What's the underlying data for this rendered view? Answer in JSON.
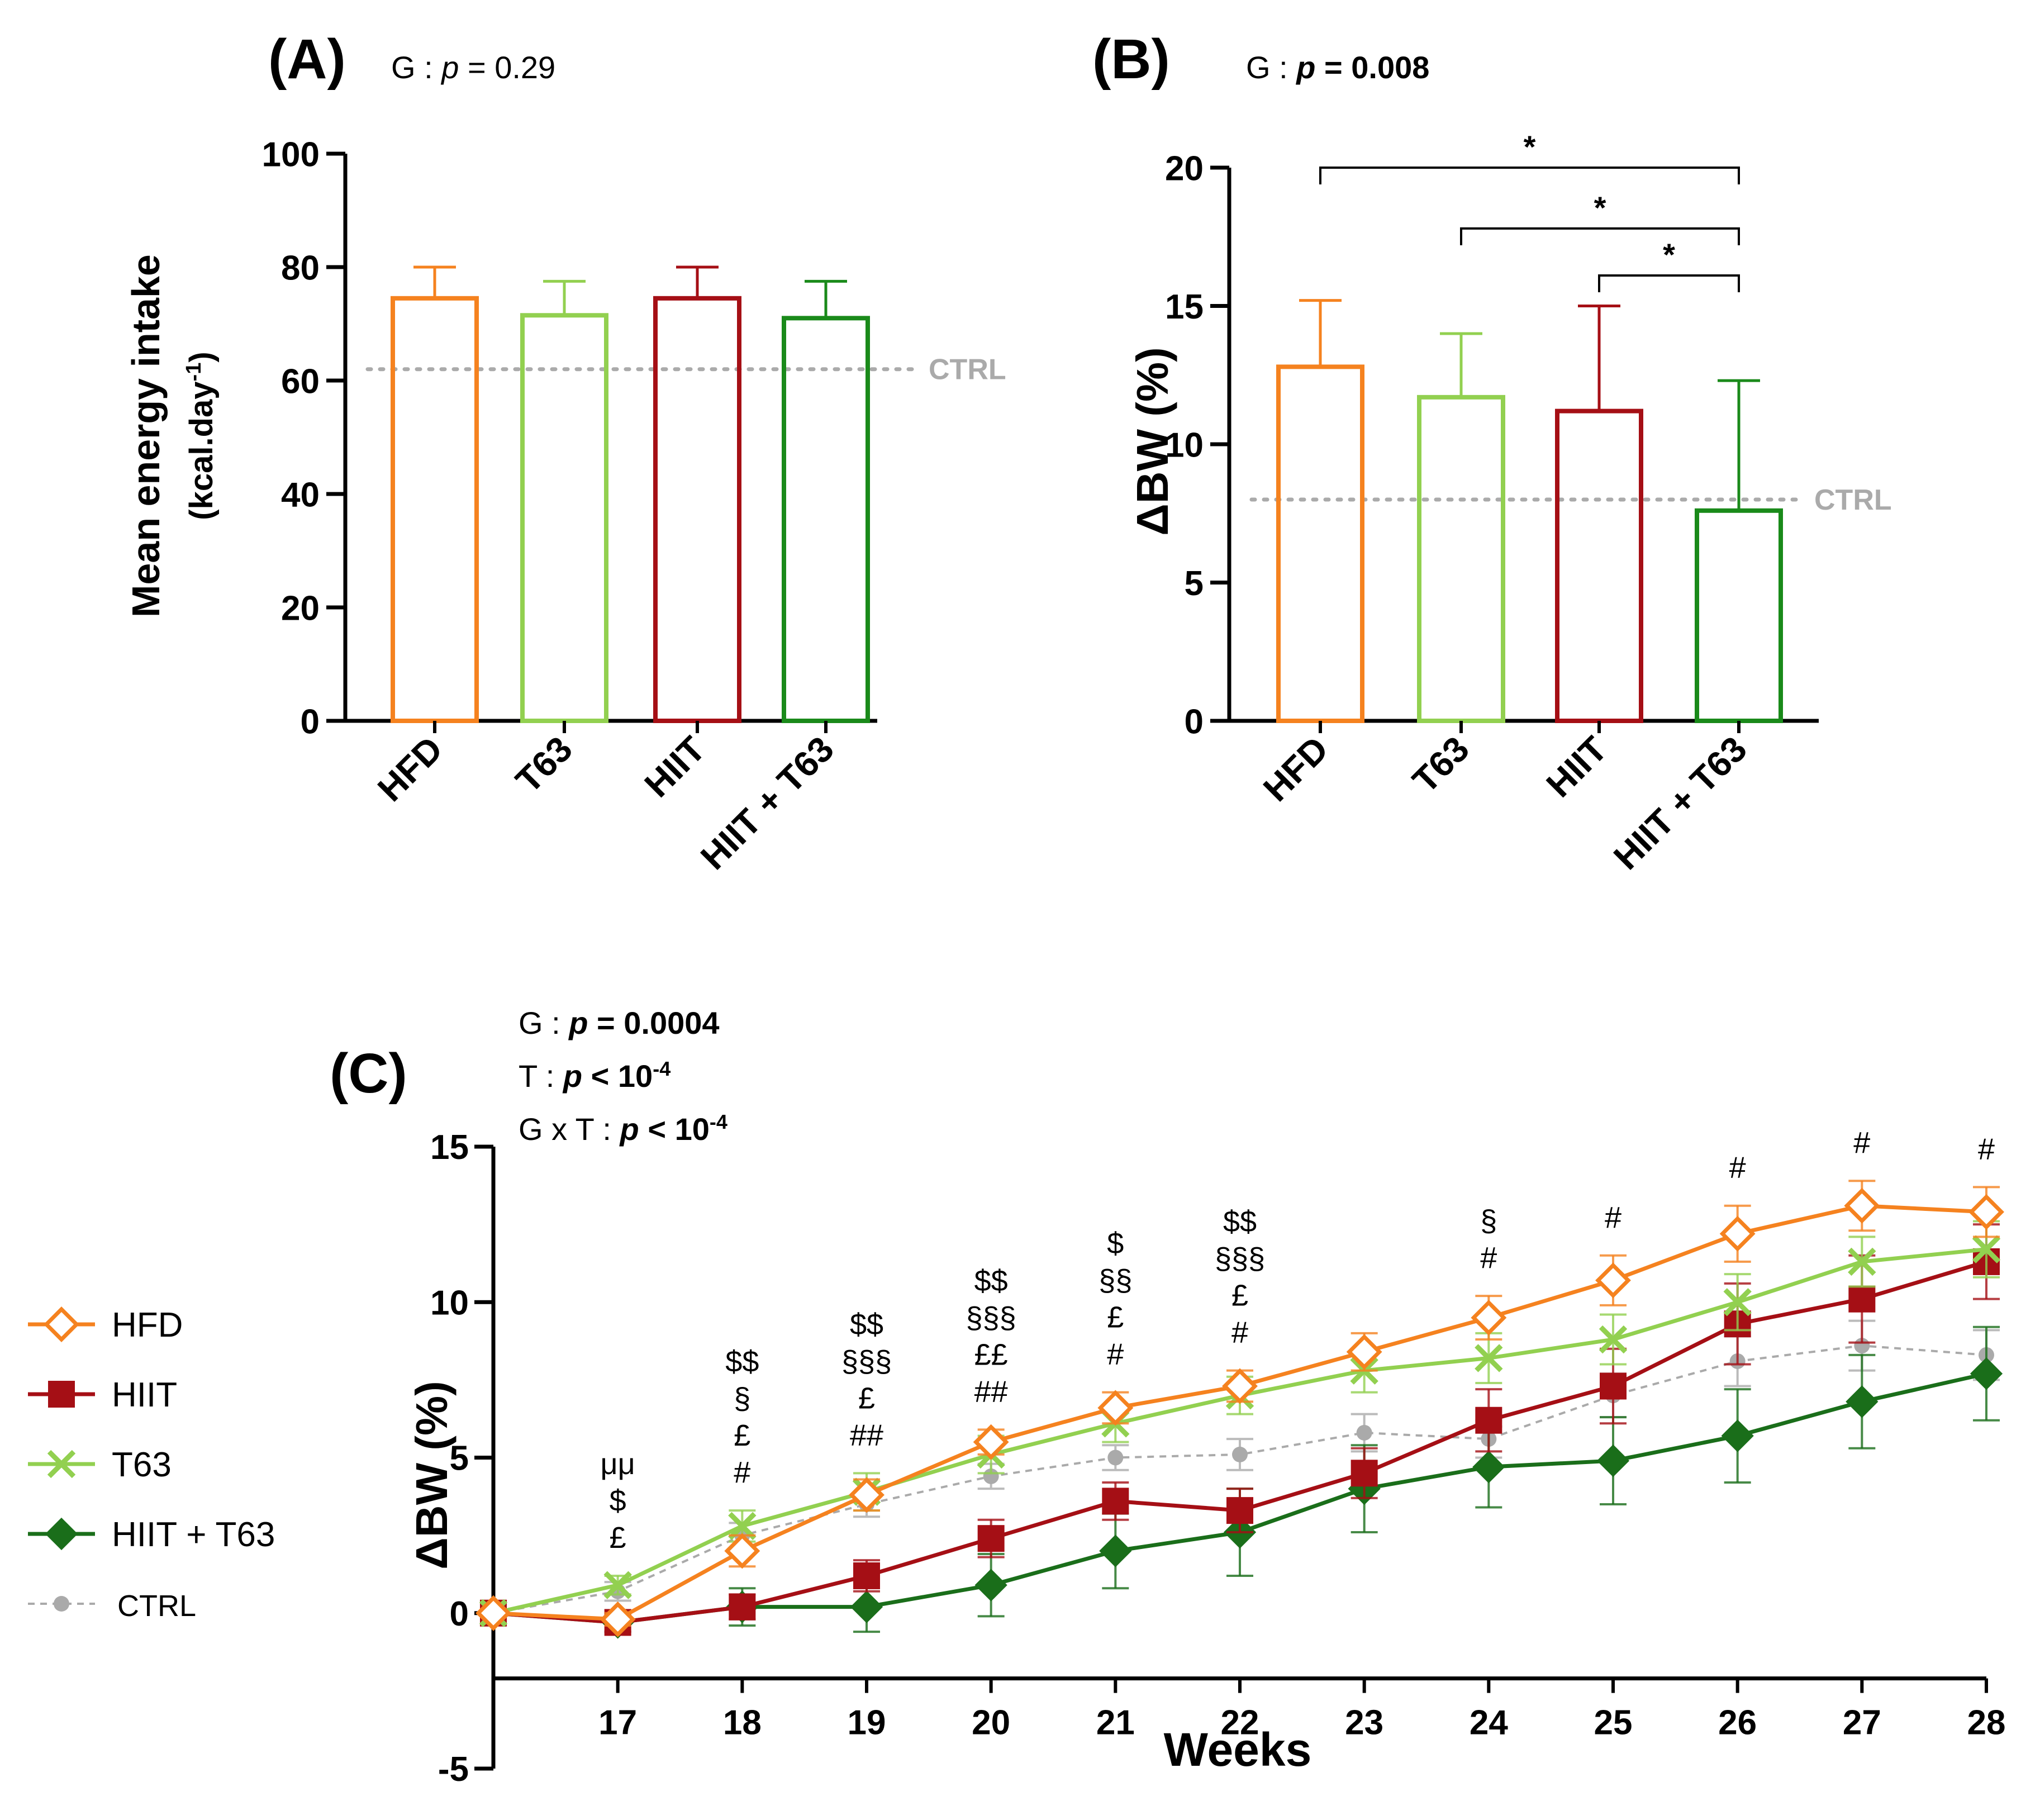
{
  "chart_data": [
    {
      "panel": "(A)",
      "type": "bar",
      "stat_prefix": "G : ",
      "stat_p": "p",
      "stat_rest": " = 0.29",
      "ylabel_line1": "Mean energy intake",
      "ylabel_line2": "(kcal.day",
      "ylabel_sup": "-1",
      "ylabel_close": ")",
      "ylim": [
        0,
        100
      ],
      "yticks": [
        "0",
        "20",
        "40",
        "60",
        "80",
        "100"
      ],
      "ytick_values": [
        0,
        20,
        40,
        60,
        80,
        100
      ],
      "categories": [
        "HFD",
        "T63",
        "HIIT",
        "HIIT + T63"
      ],
      "values": [
        74.5,
        71.5,
        74.5,
        71
      ],
      "errors": [
        5.5,
        6,
        5.5,
        6.5
      ],
      "colors": [
        "#F5821F",
        "#92D050",
        "#A50F15",
        "#1A8A1A"
      ],
      "ref_line": {
        "label": "CTRL",
        "value": 62
      }
    },
    {
      "panel": "(B)",
      "type": "bar",
      "stat_prefix": "G : ",
      "stat_p": "p",
      "stat_rest": " = 0.008",
      "ylabel": "ΔBW (%)",
      "ylim": [
        0,
        20
      ],
      "yticks": [
        "0",
        "5",
        "10",
        "15",
        "20"
      ],
      "ytick_values": [
        0,
        5,
        10,
        15,
        20
      ],
      "categories": [
        "HFD",
        "T63",
        "HIIT",
        "HIIT + T63"
      ],
      "values": [
        12.8,
        11.7,
        11.2,
        7.6
      ],
      "errors": [
        2.4,
        2.3,
        3.8,
        4.7
      ],
      "colors": [
        "#F5821F",
        "#92D050",
        "#A50F15",
        "#1A8A1A"
      ],
      "ref_line": {
        "label": "CTRL",
        "value": 8
      },
      "significance": [
        {
          "from": 0,
          "to": 3,
          "y": 20,
          "label": "*"
        },
        {
          "from": 1,
          "to": 3,
          "y": 17.8,
          "label": "*"
        },
        {
          "from": 2,
          "to": 3,
          "y": 16.1,
          "label": "*"
        }
      ]
    },
    {
      "panel": "(C)",
      "type": "line",
      "stats": [
        {
          "prefix": "G : ",
          "p": "p",
          "rest": " = 0.0004",
          "sup": ""
        },
        {
          "prefix": "T :  ",
          "p": "p",
          "rest": " < 10",
          "sup": "-4"
        },
        {
          "prefix": "G x T : ",
          "p": "p",
          "rest": " < 10",
          "sup": "-4"
        }
      ],
      "xlabel": "Weeks",
      "ylabel": "ΔBW (%)",
      "xlim": [
        16,
        28
      ],
      "ylim": [
        -5,
        15
      ],
      "xticks": [
        "17",
        "18",
        "19",
        "20",
        "21",
        "22",
        "23",
        "24",
        "25",
        "26",
        "27",
        "28"
      ],
      "xtick_values": [
        17,
        18,
        19,
        20,
        21,
        22,
        23,
        24,
        25,
        26,
        27,
        28
      ],
      "yticks": [
        "-5",
        "0",
        "5",
        "10",
        "15"
      ],
      "ytick_values": [
        -5,
        0,
        5,
        10,
        15
      ],
      "x": [
        16,
        17,
        18,
        19,
        20,
        21,
        22,
        23,
        24,
        25,
        26,
        27,
        28
      ],
      "series": [
        {
          "name": "HFD",
          "color": "#F5821F",
          "marker": "diamond-open",
          "values": [
            0,
            -0.2,
            2.0,
            3.8,
            5.5,
            6.6,
            7.3,
            8.4,
            9.5,
            10.7,
            12.2,
            13.1,
            12.9
          ],
          "errors": [
            0,
            0.2,
            0.5,
            0.5,
            0.4,
            0.5,
            0.5,
            0.6,
            0.7,
            0.8,
            0.9,
            0.8,
            0.8
          ]
        },
        {
          "name": "HIIT",
          "color": "#A50F15",
          "marker": "square",
          "values": [
            0,
            -0.3,
            0.2,
            1.2,
            2.4,
            3.6,
            3.3,
            4.5,
            6.2,
            7.3,
            9.3,
            10.1,
            11.3
          ],
          "errors": [
            0,
            0.3,
            0.4,
            0.5,
            0.6,
            0.6,
            0.7,
            0.8,
            1.0,
            1.2,
            1.3,
            1.4,
            1.2
          ]
        },
        {
          "name": "T63",
          "color": "#92D050",
          "marker": "cross",
          "values": [
            0,
            0.9,
            2.8,
            3.9,
            5.1,
            6.1,
            7.0,
            7.8,
            8.2,
            8.8,
            10.0,
            11.3,
            11.7
          ],
          "errors": [
            0,
            0.3,
            0.5,
            0.6,
            0.6,
            0.6,
            0.6,
            0.7,
            0.8,
            0.8,
            0.9,
            0.8,
            0.9
          ]
        },
        {
          "name": "HIIT + T63",
          "color": "#1A6E1A",
          "marker": "diamond",
          "values": [
            0,
            -0.3,
            0.2,
            0.2,
            0.9,
            2.0,
            2.6,
            4.0,
            4.7,
            4.9,
            5.7,
            6.8,
            7.7
          ],
          "errors": [
            0,
            0.3,
            0.6,
            0.8,
            1.0,
            1.2,
            1.4,
            1.4,
            1.3,
            1.4,
            1.5,
            1.5,
            1.5
          ]
        },
        {
          "name": "CTRL",
          "color": "#AAAAAA",
          "marker": "dot",
          "dashed": true,
          "values": [
            0,
            0.7,
            2.5,
            3.5,
            4.4,
            5.0,
            5.1,
            5.8,
            5.6,
            7.0,
            8.1,
            8.6,
            8.3
          ],
          "errors": [
            0,
            0.3,
            0.4,
            0.4,
            0.4,
            0.4,
            0.5,
            0.6,
            0.6,
            0.7,
            0.8,
            0.8,
            0.8
          ]
        }
      ],
      "annotations": [
        {
          "x": 17,
          "lines": [
            "μμ",
            "$",
            "£"
          ]
        },
        {
          "x": 18,
          "lines": [
            "$$",
            "§",
            "£",
            "#"
          ]
        },
        {
          "x": 19,
          "lines": [
            "$$",
            "§§§",
            "£",
            "##"
          ]
        },
        {
          "x": 20,
          "lines": [
            "$$",
            "§§§",
            "££",
            "##"
          ]
        },
        {
          "x": 21,
          "lines": [
            "$",
            "§§",
            "£",
            "#"
          ]
        },
        {
          "x": 22,
          "lines": [
            "$$",
            "§§§",
            "£",
            "#"
          ]
        },
        {
          "x": 24,
          "lines": [
            "§",
            "#"
          ]
        },
        {
          "x": 25,
          "lines": [
            "#"
          ]
        },
        {
          "x": 26,
          "lines": [
            "#"
          ]
        },
        {
          "x": 27,
          "lines": [
            "#"
          ]
        },
        {
          "x": 28,
          "lines": [
            "#"
          ]
        }
      ],
      "legend": [
        "HFD",
        "HIIT",
        "T63",
        "HIIT + T63",
        "CTRL"
      ]
    }
  ]
}
